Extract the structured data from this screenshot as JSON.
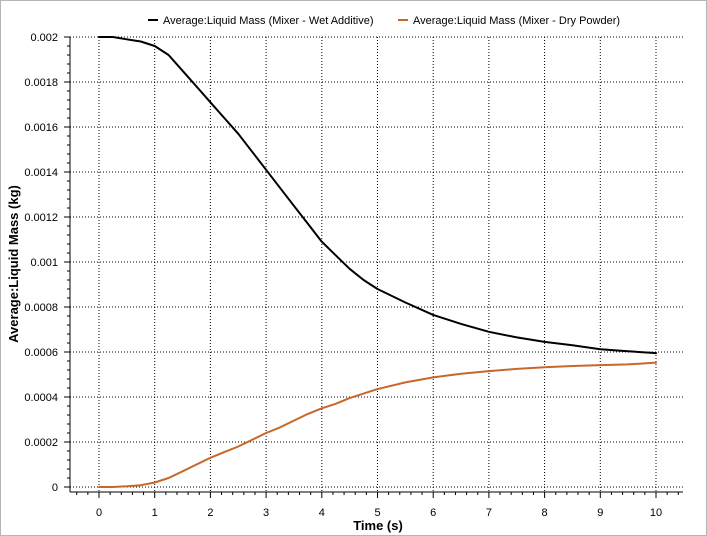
{
  "chart_data": {
    "type": "line",
    "title": "",
    "xlabel": "Time (s)",
    "ylabel": "Average:Liquid Mass (kg)",
    "xlim": [
      -0.45,
      10.5
    ],
    "ylim": [
      0,
      0.002
    ],
    "x_ticks": [
      0,
      1,
      2,
      3,
      4,
      5,
      6,
      7,
      8,
      9,
      10
    ],
    "x_tick_labels": [
      "0",
      "1",
      "2",
      "3",
      "4",
      "5",
      "6",
      "7",
      "8",
      "9",
      "10"
    ],
    "y_ticks": [
      0,
      0.0002,
      0.0004,
      0.0006,
      0.0008,
      0.001,
      0.0012,
      0.0014,
      0.0016,
      0.0018,
      0.002
    ],
    "y_tick_labels": [
      "0",
      "0.0002",
      "0.0004",
      "0.0006",
      "0.0008",
      "0.001",
      "0.0012",
      "0.0014",
      "0.0016",
      "0.0018",
      "0.002"
    ],
    "grid": true,
    "legend_position": "top",
    "series": [
      {
        "name": "Average:Liquid Mass (Mixer - Wet Additive)",
        "color": "#000000",
        "x": [
          0,
          0.25,
          0.5,
          0.75,
          1.0,
          1.25,
          1.5,
          1.75,
          2.0,
          2.25,
          2.5,
          2.75,
          3.0,
          3.25,
          3.5,
          3.75,
          4.0,
          4.25,
          4.5,
          4.75,
          5.0,
          5.5,
          6.0,
          6.5,
          7.0,
          7.5,
          8.0,
          8.5,
          9.0,
          9.5,
          10.0
        ],
        "y": [
          0.002,
          0.002,
          0.00199,
          0.00198,
          0.00196,
          0.00192,
          0.00185,
          0.00178,
          0.00171,
          0.00164,
          0.00157,
          0.00149,
          0.00141,
          0.00133,
          0.00125,
          0.00117,
          0.00109,
          0.00103,
          0.00097,
          0.00092,
          0.00088,
          0.00082,
          0.000765,
          0.000725,
          0.00069,
          0.000665,
          0.000645,
          0.00063,
          0.000612,
          0.000603,
          0.000595
        ]
      },
      {
        "name": "Average:Liquid Mass (Mixer - Dry Powder)",
        "color": "#c8672a",
        "x": [
          0,
          0.25,
          0.5,
          0.75,
          1.0,
          1.25,
          1.5,
          1.75,
          2.0,
          2.25,
          2.5,
          2.75,
          3.0,
          3.25,
          3.5,
          3.75,
          4.0,
          4.25,
          4.5,
          4.75,
          5.0,
          5.5,
          6.0,
          6.5,
          7.0,
          7.5,
          8.0,
          8.5,
          9.0,
          9.5,
          10.0
        ],
        "y": [
          0,
          0,
          3e-06,
          8e-06,
          2e-05,
          4e-05,
          7e-05,
          0.0001,
          0.00013,
          0.000155,
          0.00018,
          0.00021,
          0.00024,
          0.000265,
          0.000295,
          0.000325,
          0.00035,
          0.00037,
          0.000395,
          0.000415,
          0.000435,
          0.000465,
          0.000487,
          0.000503,
          0.000515,
          0.000525,
          0.000532,
          0.000538,
          0.000542,
          0.000545,
          0.000553
        ]
      }
    ]
  }
}
